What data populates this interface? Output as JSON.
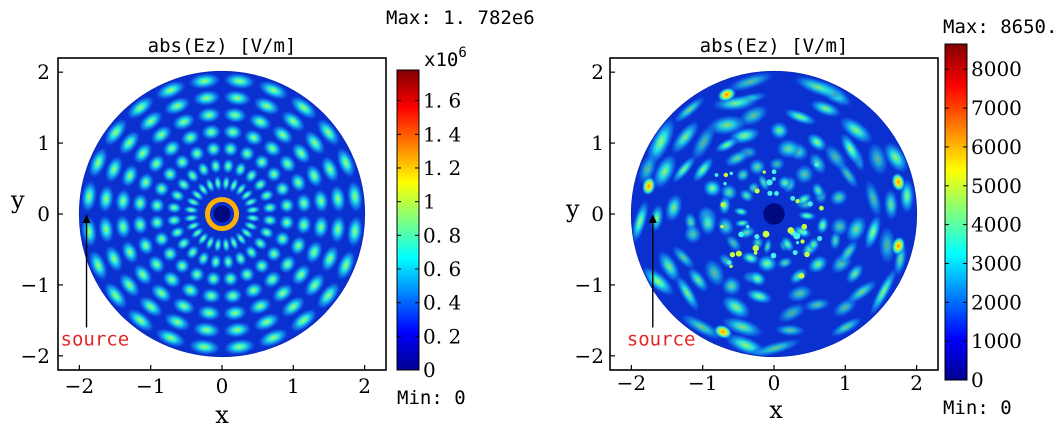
{
  "chart_data": [
    {
      "type": "heatmap",
      "title": "abs(Ez) [V/m]",
      "xlabel": "x",
      "ylabel": "y",
      "xlim": [
        -2.3,
        2.3
      ],
      "ylim": [
        -2.2,
        2.2
      ],
      "x_ticks": [
        -2,
        -1,
        0,
        1,
        2
      ],
      "y_ticks": [
        -2,
        -1,
        0,
        1,
        2
      ],
      "x_tick_labels": [
        "−2",
        "−1",
        "0",
        "1",
        "2"
      ],
      "y_tick_labels": [
        "−2",
        "−1",
        "0",
        "1",
        "2"
      ],
      "domain": {
        "shape": "circle",
        "center": [
          0,
          0
        ],
        "radius": 2,
        "inner_radius": 0.12
      },
      "pattern": {
        "spokes": 24,
        "radial_lobes": 7
      },
      "annotation": {
        "text": "source",
        "arrow_x": -1.9,
        "arrow_from_y": -1.6,
        "arrow_to_y": 0.0
      },
      "colorbar": {
        "min": 0,
        "max": 1782000.0,
        "ticks": [
          0,
          0.2,
          0.4,
          0.6,
          0.8,
          1,
          1.2,
          1.4,
          1.6
        ],
        "tick_labels": [
          "0",
          "0. 2",
          "0. 4",
          "0. 6",
          "0. 8",
          "1",
          "1. 2",
          "1. 4",
          "1. 6"
        ],
        "scale_label": "x10",
        "scale_exponent": "6",
        "max_label": "Max: 1. 782e6",
        "min_label": "Min: 0"
      }
    },
    {
      "type": "heatmap",
      "title": "abs(Ez) [V/m]",
      "xlabel": "x",
      "ylabel": "y",
      "xlim": [
        -2.3,
        2.3
      ],
      "ylim": [
        -2.2,
        2.2
      ],
      "x_ticks": [
        -2,
        -1,
        0,
        1,
        2
      ],
      "y_ticks": [
        -2,
        -1,
        0,
        1,
        2
      ],
      "x_tick_labels": [
        "−2",
        "−1",
        "0",
        "1",
        "2"
      ],
      "y_tick_labels": [
        "−2",
        "−1",
        "0",
        "1",
        "2"
      ],
      "domain": {
        "shape": "circle",
        "center": [
          0,
          0
        ],
        "radius": 2,
        "inner_radius": 0.15
      },
      "pattern": {
        "spokes": 16,
        "radial_lobes": 7,
        "irregular": true
      },
      "annotation": {
        "text": "source",
        "arrow_x": -1.7,
        "arrow_from_y": -1.6,
        "arrow_to_y": 0.0
      },
      "colorbar": {
        "min": 0,
        "max": 8650,
        "ticks": [
          0,
          1000,
          2000,
          3000,
          4000,
          5000,
          6000,
          7000,
          8000
        ],
        "tick_labels": [
          "0",
          "1000",
          "2000",
          "3000",
          "4000",
          "5000",
          "6000",
          "7000",
          "8000"
        ],
        "max_label": "Max: 8650.",
        "min_label": "Min: 0"
      }
    }
  ]
}
